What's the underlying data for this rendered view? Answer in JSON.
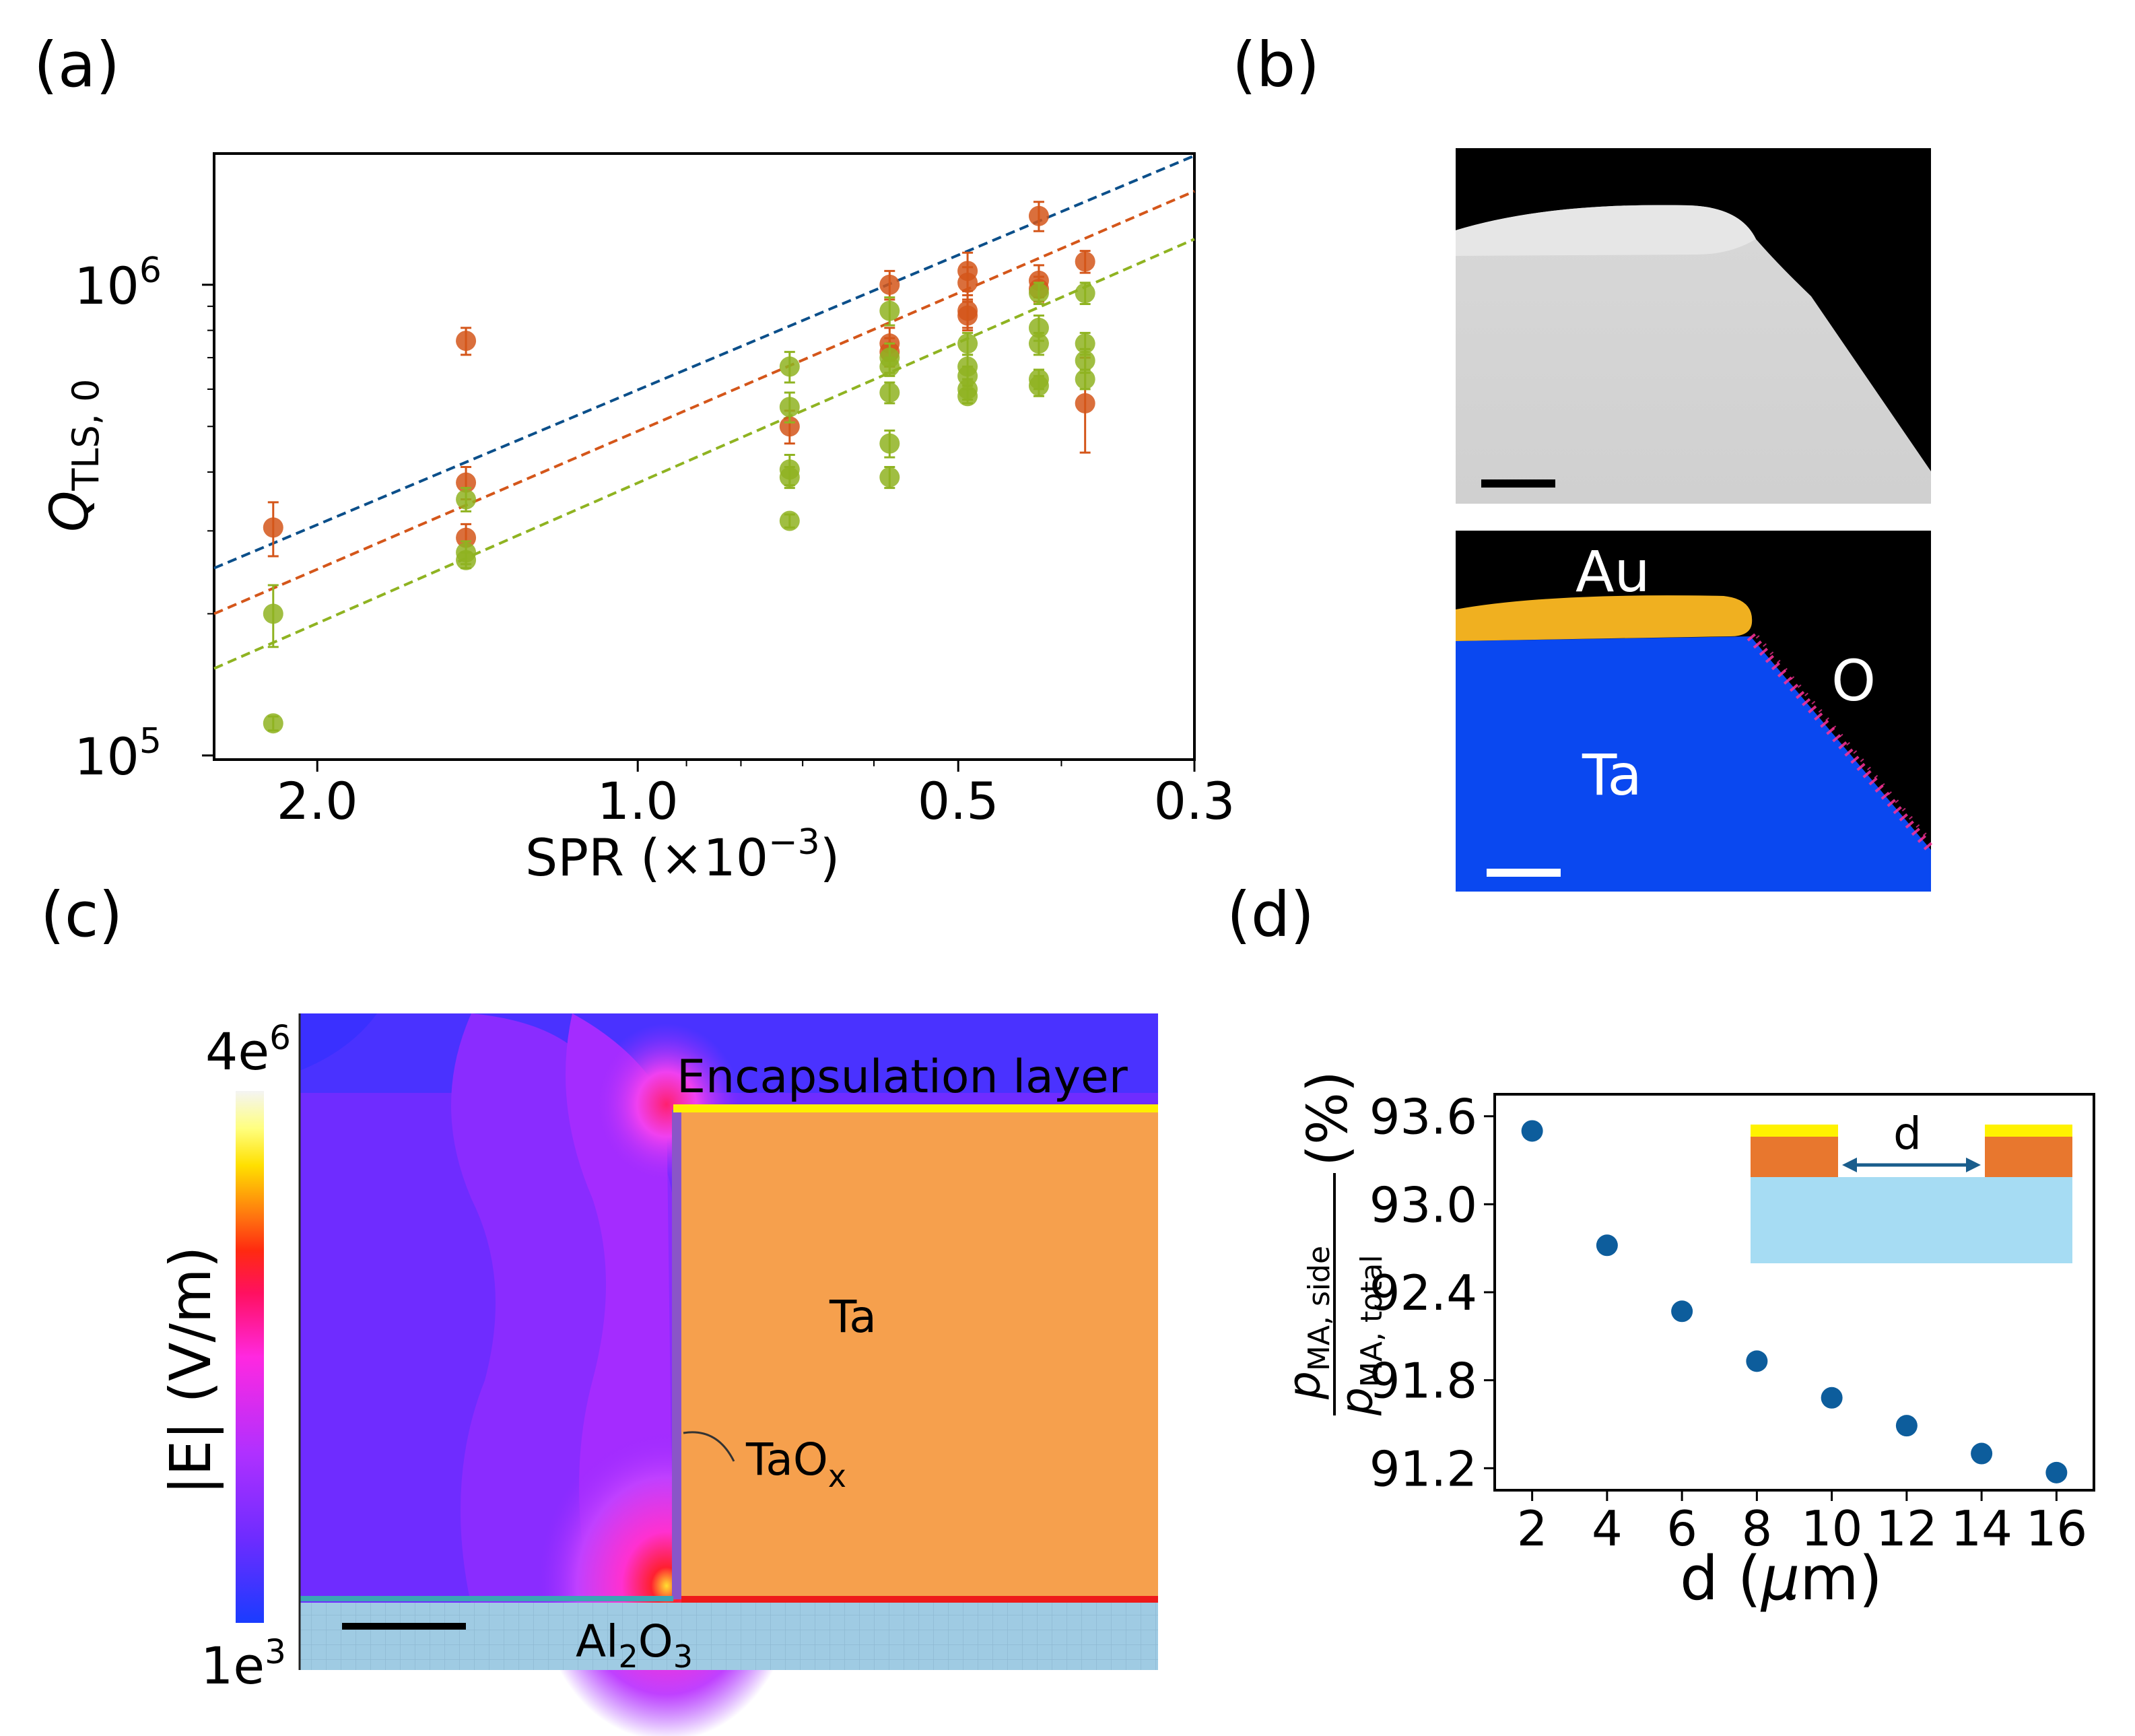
{
  "panel_labels": {
    "a": "(a)",
    "b": "(b)",
    "c": "(c)",
    "d": "(d)"
  },
  "colors": {
    "blue": "#0b4f8a",
    "orange": "#d4561a",
    "green": "#8fb321",
    "point_d": "#0d5d9c",
    "ta_orange": "#f6a04d",
    "substrate": "#9fcbe3",
    "eds_blue": "#0a48f0",
    "eds_gold": "#f0b020",
    "eds_pink": "#ff3399"
  },
  "panel_b": {
    "labels": {
      "au": "Au",
      "o": "O",
      "ta": "Ta"
    }
  },
  "panel_c": {
    "colorbar_top": "4e",
    "colorbar_top_exp": "6",
    "colorbar_bottom": "1e",
    "colorbar_bottom_exp": "3",
    "colorbar_label": "|E| (V/m)",
    "label_encap": "Encapsulation layer",
    "label_ta": "Ta",
    "label_taox_main": "TaO",
    "label_taox_sub": "x",
    "label_al_main1": "Al",
    "label_al_sub1": "2",
    "label_al_main2": "O",
    "label_al_sub2": "3"
  },
  "panel_d_inset": {
    "label": "d"
  },
  "chart_data": [
    {
      "id": "a",
      "type": "scatter",
      "xscale": "log-reversed",
      "yscale": "log",
      "xlabel_main": "SPR (×10",
      "xlabel_exp": "−3",
      "xlabel_close": ")",
      "ylabel_main": "Q",
      "ylabel_sub": "TLS, 0",
      "xlim": [
        2.5,
        0.3
      ],
      "ylim": [
        98000,
        1900000
      ],
      "xticks": [
        2.0,
        1.0,
        0.5,
        0.3
      ],
      "xtick_labels": [
        "2.0",
        "1.0",
        "0.5",
        "0.3"
      ],
      "yticks": [
        {
          "value": 100000,
          "base": "10",
          "exp": "5"
        },
        {
          "value": 1000000,
          "base": "10",
          "exp": "6"
        }
      ],
      "fit_lines": [
        {
          "name": "blue-fit",
          "color": "#0b4f8a",
          "x": [
            2.5,
            0.3
          ],
          "y": [
            250000,
            1880000
          ]
        },
        {
          "name": "orange-fit",
          "color": "#d4561a",
          "x": [
            2.5,
            0.3
          ],
          "y": [
            200000,
            1580000
          ]
        },
        {
          "name": "green-fit",
          "color": "#8fb321",
          "x": [
            2.5,
            0.3
          ],
          "y": [
            153000,
            1250000
          ]
        }
      ],
      "series": [
        {
          "name": "orange",
          "color": "#d4561a",
          "points": [
            {
              "x": 2.2,
              "y": 305000,
              "err": [
                40000,
                40000
              ]
            },
            {
              "x": 1.45,
              "y": 760000,
              "err": [
                50000,
                50000
              ]
            },
            {
              "x": 1.45,
              "y": 380000,
              "err": [
                30000,
                30000
              ]
            },
            {
              "x": 1.45,
              "y": 290000,
              "err": [
                20000,
                20000
              ]
            },
            {
              "x": 0.72,
              "y": 500000,
              "err": [
                40000,
                40000
              ]
            },
            {
              "x": 0.58,
              "y": 1000000,
              "err": [
                70000,
                70000
              ]
            },
            {
              "x": 0.58,
              "y": 750000,
              "err": [
                60000,
                60000
              ]
            },
            {
              "x": 0.58,
              "y": 720000,
              "err": [
                50000,
                50000
              ]
            },
            {
              "x": 0.49,
              "y": 1070000,
              "err": [
                100000,
                100000
              ]
            },
            {
              "x": 0.49,
              "y": 1010000,
              "err": [
                80000,
                80000
              ]
            },
            {
              "x": 0.49,
              "y": 880000,
              "err": [
                70000,
                70000
              ]
            },
            {
              "x": 0.49,
              "y": 860000,
              "err": [
                60000,
                60000
              ]
            },
            {
              "x": 0.42,
              "y": 1400000,
              "err": [
                100000,
                100000
              ]
            },
            {
              "x": 0.42,
              "y": 1020000,
              "err": [
                80000,
                80000
              ]
            },
            {
              "x": 0.42,
              "y": 980000,
              "err": [
                60000,
                60000
              ]
            },
            {
              "x": 0.38,
              "y": 1120000,
              "err": [
                60000,
                60000
              ]
            },
            {
              "x": 0.38,
              "y": 560000,
              "err": [
                120000,
                140000
              ]
            }
          ]
        },
        {
          "name": "green",
          "color": "#8fb321",
          "points": [
            {
              "x": 2.2,
              "y": 200000,
              "err": [
                30000,
                30000
              ]
            },
            {
              "x": 2.2,
              "y": 117000,
              "err": [
                4000,
                4000
              ]
            },
            {
              "x": 1.45,
              "y": 350000,
              "err": [
                20000,
                20000
              ]
            },
            {
              "x": 1.45,
              "y": 270000,
              "err": [
                15000,
                15000
              ]
            },
            {
              "x": 1.45,
              "y": 260000,
              "err": [
                10000,
                10000
              ]
            },
            {
              "x": 0.72,
              "y": 670000,
              "err": [
                50000,
                50000
              ]
            },
            {
              "x": 0.72,
              "y": 550000,
              "err": [
                40000,
                40000
              ]
            },
            {
              "x": 0.72,
              "y": 405000,
              "err": [
                30000,
                30000
              ]
            },
            {
              "x": 0.72,
              "y": 390000,
              "err": [
                20000,
                20000
              ]
            },
            {
              "x": 0.72,
              "y": 315000,
              "err": [
                10000,
                10000
              ]
            },
            {
              "x": 0.58,
              "y": 880000,
              "err": [
                60000,
                60000
              ]
            },
            {
              "x": 0.58,
              "y": 700000,
              "err": [
                50000,
                50000
              ]
            },
            {
              "x": 0.58,
              "y": 670000,
              "err": [
                30000,
                30000
              ]
            },
            {
              "x": 0.58,
              "y": 590000,
              "err": [
                30000,
                30000
              ]
            },
            {
              "x": 0.58,
              "y": 460000,
              "err": [
                30000,
                30000
              ]
            },
            {
              "x": 0.58,
              "y": 390000,
              "err": [
                20000,
                20000
              ]
            },
            {
              "x": 0.49,
              "y": 750000,
              "err": [
                40000,
                40000
              ]
            },
            {
              "x": 0.49,
              "y": 670000,
              "err": [
                40000,
                40000
              ]
            },
            {
              "x": 0.49,
              "y": 640000,
              "err": [
                30000,
                30000
              ]
            },
            {
              "x": 0.49,
              "y": 600000,
              "err": [
                30000,
                30000
              ]
            },
            {
              "x": 0.49,
              "y": 580000,
              "err": [
                20000,
                20000
              ]
            },
            {
              "x": 0.42,
              "y": 960000,
              "err": [
                50000,
                50000
              ]
            },
            {
              "x": 0.42,
              "y": 810000,
              "err": [
                50000,
                50000
              ]
            },
            {
              "x": 0.42,
              "y": 750000,
              "err": [
                40000,
                40000
              ]
            },
            {
              "x": 0.42,
              "y": 630000,
              "err": [
                30000,
                30000
              ]
            },
            {
              "x": 0.42,
              "y": 610000,
              "err": [
                30000,
                30000
              ]
            },
            {
              "x": 0.38,
              "y": 960000,
              "err": [
                50000,
                50000
              ]
            },
            {
              "x": 0.38,
              "y": 750000,
              "err": [
                40000,
                40000
              ]
            },
            {
              "x": 0.38,
              "y": 690000,
              "err": [
                40000,
                40000
              ]
            },
            {
              "x": 0.38,
              "y": 630000,
              "err": [
                30000,
                30000
              ]
            }
          ]
        }
      ]
    },
    {
      "id": "d",
      "type": "scatter",
      "xlabel_main": "d (",
      "xlabel_mu": "μ",
      "xlabel_rest": "m)",
      "ylabel_num_main": "p",
      "ylabel_num_sub": "MA, side",
      "ylabel_den_main": "p",
      "ylabel_den_sub": "MA, total",
      "ylabel_unit": "(%)",
      "xlim": [
        1.0,
        17.0
      ],
      "ylim": [
        91.05,
        93.75
      ],
      "xticks": [
        2,
        4,
        6,
        8,
        10,
        12,
        14,
        16
      ],
      "xtick_labels": [
        "2",
        "4",
        "6",
        "8",
        "10",
        "12",
        "14",
        "16"
      ],
      "yticks": [
        91.2,
        91.8,
        92.4,
        93.0,
        93.6
      ],
      "ytick_labels": [
        "91.2",
        "91.8",
        "92.4",
        "93.0",
        "93.6"
      ],
      "x": [
        2,
        4,
        6,
        8,
        10,
        12,
        14,
        16
      ],
      "y": [
        93.5,
        92.72,
        92.27,
        91.93,
        91.68,
        91.49,
        91.3,
        91.17
      ]
    }
  ]
}
